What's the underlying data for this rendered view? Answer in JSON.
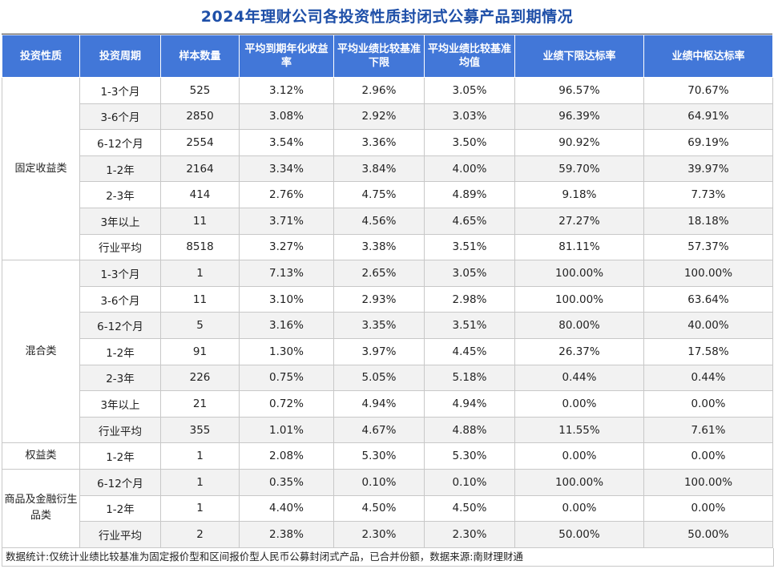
{
  "title": "2024年理财公司各投资性质封闭式公募产品到期情况",
  "headers": [
    "投资性质",
    "投资周期",
    "样本数量",
    "平均到期年化收益率",
    "平均业绩比较基准下限",
    "平均业绩比较基准均值",
    "业绩下限达标率",
    "业绩中枢达标率"
  ],
  "groups": [
    {
      "name": "固定收益类",
      "rows": [
        [
          "1-3个月",
          "525",
          "3.12%",
          "2.96%",
          "3.05%",
          "96.57%",
          "70.67%"
        ],
        [
          "3-6个月",
          "2850",
          "3.08%",
          "2.92%",
          "3.03%",
          "96.39%",
          "64.91%"
        ],
        [
          "6-12个月",
          "2554",
          "3.54%",
          "3.36%",
          "3.50%",
          "90.92%",
          "69.19%"
        ],
        [
          "1-2年",
          "2164",
          "3.34%",
          "3.84%",
          "4.00%",
          "59.70%",
          "39.97%"
        ],
        [
          "2-3年",
          "414",
          "2.76%",
          "4.75%",
          "4.89%",
          "9.18%",
          "7.73%"
        ],
        [
          "3年以上",
          "11",
          "3.71%",
          "4.56%",
          "4.65%",
          "27.27%",
          "18.18%"
        ],
        [
          "行业平均",
          "8518",
          "3.27%",
          "3.38%",
          "3.51%",
          "81.11%",
          "57.37%"
        ]
      ]
    },
    {
      "name": "混合类",
      "rows": [
        [
          "1-3个月",
          "1",
          "7.13%",
          "2.65%",
          "3.05%",
          "100.00%",
          "100.00%"
        ],
        [
          "3-6个月",
          "11",
          "3.10%",
          "2.93%",
          "2.98%",
          "100.00%",
          "63.64%"
        ],
        [
          "6-12个月",
          "5",
          "3.16%",
          "3.35%",
          "3.51%",
          "80.00%",
          "40.00%"
        ],
        [
          "1-2年",
          "91",
          "1.30%",
          "3.97%",
          "4.45%",
          "26.37%",
          "17.58%"
        ],
        [
          "2-3年",
          "226",
          "0.75%",
          "5.05%",
          "5.18%",
          "0.44%",
          "0.44%"
        ],
        [
          "3年以上",
          "21",
          "0.72%",
          "4.94%",
          "4.94%",
          "0.00%",
          "0.00%"
        ],
        [
          "行业平均",
          "355",
          "1.01%",
          "4.67%",
          "4.88%",
          "11.55%",
          "7.61%"
        ]
      ]
    },
    {
      "name": "权益类",
      "rows": [
        [
          "1-2年",
          "1",
          "2.08%",
          "5.30%",
          "5.30%",
          "0.00%",
          "0.00%"
        ]
      ]
    },
    {
      "name": "商品及金融衍生品类",
      "rows": [
        [
          "6-12个月",
          "1",
          "0.35%",
          "0.10%",
          "0.10%",
          "100.00%",
          "100.00%"
        ],
        [
          "1-2年",
          "1",
          "4.40%",
          "4.50%",
          "4.50%",
          "0.00%",
          "0.00%"
        ],
        [
          "行业平均",
          "2",
          "2.38%",
          "2.30%",
          "2.30%",
          "50.00%",
          "50.00%"
        ]
      ]
    }
  ],
  "footnote": "数据统计:仅统计业绩比较基准为固定报价型和区间报价型人民币公募封闭式产品，已合并份额，数据来源:南财理财通"
}
